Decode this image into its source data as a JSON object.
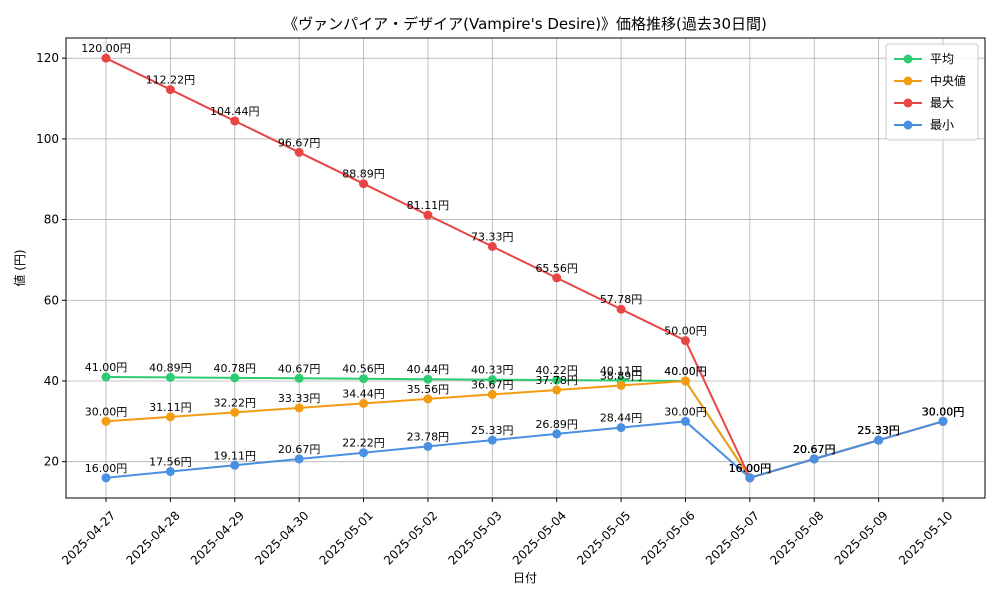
{
  "chart_data": {
    "type": "line",
    "title": "《ヴァンパイア・デザイア(Vampire's Desire)》価格推移(過去30日間)",
    "xlabel": "日付",
    "ylabel": "値 (円)",
    "categories": [
      "2025-04-27",
      "2025-04-28",
      "2025-04-29",
      "2025-04-30",
      "2025-05-01",
      "2025-05-02",
      "2025-05-03",
      "2025-05-04",
      "2025-05-05",
      "2025-05-06",
      "2025-05-07",
      "2025-05-08",
      "2025-05-09",
      "2025-05-10"
    ],
    "ylim": [
      11,
      125
    ],
    "yticks": [
      20,
      40,
      60,
      80,
      100,
      120
    ],
    "grid": true,
    "legend_position": "top-right",
    "value_suffix": "円",
    "series": [
      {
        "name": "平均",
        "color": "#2ecc71",
        "values": [
          41.0,
          40.89,
          40.78,
          40.67,
          40.56,
          40.44,
          40.33,
          40.22,
          40.11,
          40.0,
          16.0,
          20.67,
          25.33,
          30.0
        ]
      },
      {
        "name": "中央値",
        "color": "#f39c12",
        "values": [
          30.0,
          31.11,
          32.22,
          33.33,
          34.44,
          35.56,
          36.67,
          37.78,
          38.89,
          40.0,
          16.0,
          20.67,
          25.33,
          30.0
        ]
      },
      {
        "name": "最大",
        "color": "#e84545",
        "values": [
          120.0,
          112.22,
          104.44,
          96.67,
          88.89,
          81.11,
          73.33,
          65.56,
          57.78,
          50.0,
          16.0,
          20.67,
          25.33,
          30.0
        ]
      },
      {
        "name": "最小",
        "color": "#4a90e2",
        "values": [
          16.0,
          17.56,
          19.11,
          20.67,
          22.22,
          23.78,
          25.33,
          26.89,
          28.44,
          30.0,
          16.0,
          20.67,
          25.33,
          30.0
        ]
      }
    ]
  }
}
